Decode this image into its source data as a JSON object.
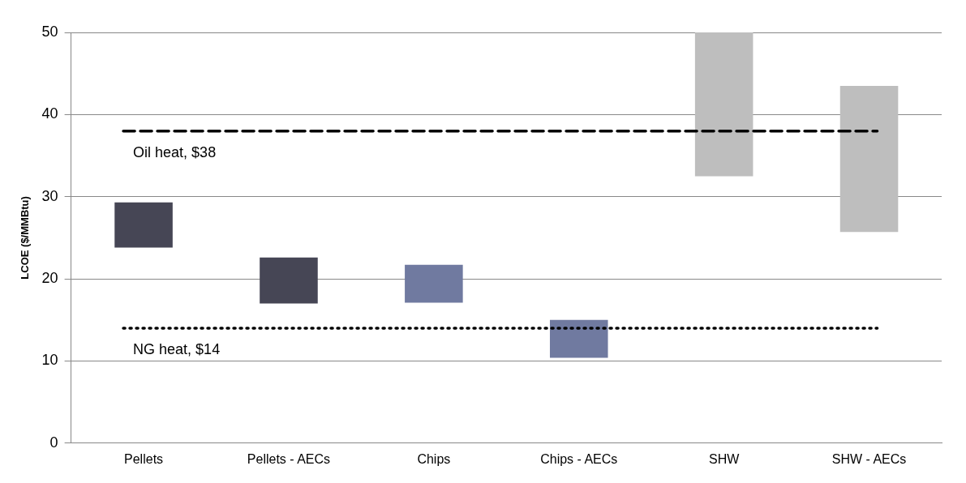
{
  "chart_data": {
    "type": "bar",
    "ylabel": "LCOE ($/MMBtu)",
    "categories": [
      "Pellets",
      "Pellets - AECs",
      "Chips",
      "Chips - AECs",
      "SHW",
      "SHW - AECs"
    ],
    "base": [
      23.8,
      17,
      17.1,
      10.4,
      32.5,
      25.7
    ],
    "values": [
      5.5,
      5.6,
      4.6,
      4.6,
      17.5,
      17.8
    ],
    "colors": [
      "#464655",
      "#464655",
      "#707aa0",
      "#707aa0",
      "#bebebe",
      "#bebebe"
    ],
    "ylim": [
      0,
      50
    ],
    "yticks": [
      0,
      10,
      20,
      30,
      40,
      50
    ],
    "grid": "y",
    "legend": false,
    "ref_lines": [
      {
        "axis": "y",
        "value": 38,
        "label": "Oil heat, $38",
        "color": "#000000",
        "line_style": "dashed"
      },
      {
        "axis": "y",
        "value": 14,
        "label": "NG heat, $14",
        "color": "#000000",
        "line_style": "dotted"
      }
    ]
  }
}
